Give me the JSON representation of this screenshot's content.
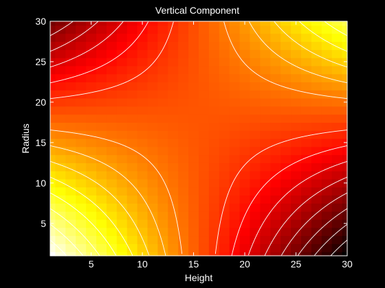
{
  "chart_data": {
    "type": "heatmap",
    "title": "Vertical Component",
    "xlabel": "Height",
    "ylabel": "Radius",
    "xlim": [
      1,
      30
    ],
    "ylim": [
      1,
      30
    ],
    "xticks": [
      5,
      10,
      15,
      20,
      25,
      30
    ],
    "yticks": [
      5,
      10,
      15,
      20,
      25,
      30
    ],
    "grid_size": [
      30,
      30
    ],
    "field": "z = (x - 15.5) * (y - 18.5)",
    "colormap": "hot",
    "contour_levels": 18,
    "contour_color": "#ffffff",
    "grid": false,
    "legend": "none"
  }
}
